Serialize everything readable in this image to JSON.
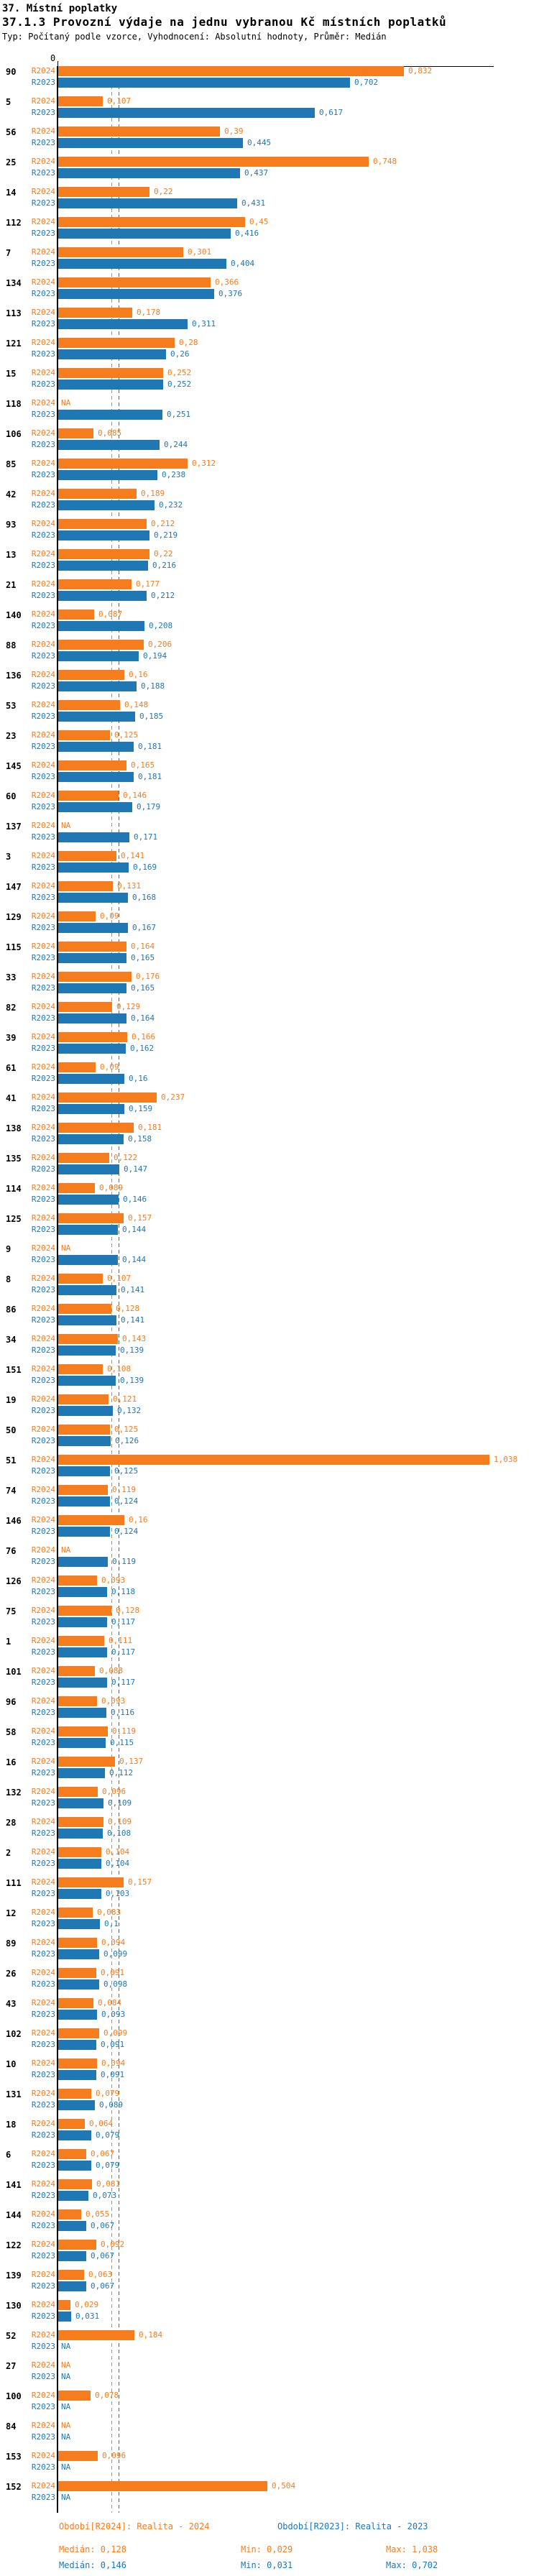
{
  "header": {
    "title": "37. Místní poplatky",
    "subtitle": "37.1.3 Provozní výdaje na jednu vybranou Kč místních poplatků",
    "meta": "Typ: Počítaný podle vzorce, Vyhodnocení: Absolutní hodnoty, Průměr: Medián"
  },
  "chart_data": {
    "type": "bar",
    "orientation": "horizontal",
    "title": "37.1.3 Provozní výdaje na jednu vybranou Kč místních poplatků",
    "series_labels": [
      "R2024",
      "R2023"
    ],
    "colors": {
      "r2024": "#F57D1D",
      "r2023": "#1F77B4"
    },
    "zero_label": "0",
    "na_label": "NA",
    "axis_min": 0,
    "axis_max": 1.05,
    "median_lines": {
      "r2024": 0.128,
      "r2023": 0.146
    },
    "legend": "bottom",
    "grid": "off",
    "groups": [
      {
        "id": "90",
        "r2024": "0,832",
        "r2023": "0,702"
      },
      {
        "id": "5",
        "r2024": "0,107",
        "r2023": "0,617"
      },
      {
        "id": "56",
        "r2024": "0,39",
        "r2023": "0,445"
      },
      {
        "id": "25",
        "r2024": "0,748",
        "r2023": "0,437"
      },
      {
        "id": "14",
        "r2024": "0,22",
        "r2023": "0,431"
      },
      {
        "id": "112",
        "r2024": "0,45",
        "r2023": "0,416"
      },
      {
        "id": "7",
        "r2024": "0,301",
        "r2023": "0,404"
      },
      {
        "id": "134",
        "r2024": "0,366",
        "r2023": "0,376"
      },
      {
        "id": "113",
        "r2024": "0,178",
        "r2023": "0,311"
      },
      {
        "id": "121",
        "r2024": "0,28",
        "r2023": "0,26"
      },
      {
        "id": "15",
        "r2024": "0,252",
        "r2023": "0,252"
      },
      {
        "id": "118",
        "r2024": "NA",
        "r2023": "0,251"
      },
      {
        "id": "106",
        "r2024": "0,085",
        "r2023": "0,244"
      },
      {
        "id": "85",
        "r2024": "0,312",
        "r2023": "0,238"
      },
      {
        "id": "42",
        "r2024": "0,189",
        "r2023": "0,232"
      },
      {
        "id": "93",
        "r2024": "0,212",
        "r2023": "0,219"
      },
      {
        "id": "13",
        "r2024": "0,22",
        "r2023": "0,216"
      },
      {
        "id": "21",
        "r2024": "0,177",
        "r2023": "0,212"
      },
      {
        "id": "140",
        "r2024": "0,087",
        "r2023": "0,208"
      },
      {
        "id": "88",
        "r2024": "0,206",
        "r2023": "0,194"
      },
      {
        "id": "136",
        "r2024": "0,16",
        "r2023": "0,188"
      },
      {
        "id": "53",
        "r2024": "0,148",
        "r2023": "0,185"
      },
      {
        "id": "23",
        "r2024": "0,125",
        "r2023": "0,181"
      },
      {
        "id": "145",
        "r2024": "0,165",
        "r2023": "0,181"
      },
      {
        "id": "60",
        "r2024": "0,146",
        "r2023": "0,179"
      },
      {
        "id": "137",
        "r2024": "NA",
        "r2023": "0,171"
      },
      {
        "id": "3",
        "r2024": "0,141",
        "r2023": "0,169"
      },
      {
        "id": "147",
        "r2024": "0,131",
        "r2023": "0,168"
      },
      {
        "id": "129",
        "r2024": "0,09",
        "r2023": "0,167"
      },
      {
        "id": "115",
        "r2024": "0,164",
        "r2023": "0,165"
      },
      {
        "id": "33",
        "r2024": "0,176",
        "r2023": "0,165"
      },
      {
        "id": "82",
        "r2024": "0,129",
        "r2023": "0,164"
      },
      {
        "id": "39",
        "r2024": "0,166",
        "r2023": "0,162"
      },
      {
        "id": "61",
        "r2024": "0,09",
        "r2023": "0,16"
      },
      {
        "id": "41",
        "r2024": "0,237",
        "r2023": "0,159"
      },
      {
        "id": "138",
        "r2024": "0,181",
        "r2023": "0,158"
      },
      {
        "id": "135",
        "r2024": "0,122",
        "r2023": "0,147"
      },
      {
        "id": "114",
        "r2024": "0,089",
        "r2023": "0,146"
      },
      {
        "id": "125",
        "r2024": "0,157",
        "r2023": "0,144"
      },
      {
        "id": "9",
        "r2024": "NA",
        "r2023": "0,144"
      },
      {
        "id": "8",
        "r2024": "0,107",
        "r2023": "0,141"
      },
      {
        "id": "86",
        "r2024": "0,128",
        "r2023": "0,141"
      },
      {
        "id": "34",
        "r2024": "0,143",
        "r2023": "0,139"
      },
      {
        "id": "151",
        "r2024": "0,108",
        "r2023": "0,139"
      },
      {
        "id": "19",
        "r2024": "0,121",
        "r2023": "0,132"
      },
      {
        "id": "50",
        "r2024": "0,125",
        "r2023": "0,126"
      },
      {
        "id": "51",
        "r2024": "1,038",
        "r2023": "0,125"
      },
      {
        "id": "74",
        "r2024": "0,119",
        "r2023": "0,124"
      },
      {
        "id": "146",
        "r2024": "0,16",
        "r2023": "0,124"
      },
      {
        "id": "76",
        "r2024": "NA",
        "r2023": "0,119"
      },
      {
        "id": "126",
        "r2024": "0,093",
        "r2023": "0,118"
      },
      {
        "id": "75",
        "r2024": "0,128",
        "r2023": "0,117"
      },
      {
        "id": "1",
        "r2024": "0,111",
        "r2023": "0,117"
      },
      {
        "id": "101",
        "r2024": "0,088",
        "r2023": "0,117"
      },
      {
        "id": "96",
        "r2024": "0,093",
        "r2023": "0,116"
      },
      {
        "id": "58",
        "r2024": "0,119",
        "r2023": "0,115"
      },
      {
        "id": "16",
        "r2024": "0,137",
        "r2023": "0,112"
      },
      {
        "id": "132",
        "r2024": "0,096",
        "r2023": "0,109"
      },
      {
        "id": "28",
        "r2024": "0,109",
        "r2023": "0,108"
      },
      {
        "id": "2",
        "r2024": "0,104",
        "r2023": "0,104"
      },
      {
        "id": "111",
        "r2024": "0,157",
        "r2023": "0,103"
      },
      {
        "id": "12",
        "r2024": "0,083",
        "r2023": "0,1"
      },
      {
        "id": "89",
        "r2024": "0,094",
        "r2023": "0,099"
      },
      {
        "id": "26",
        "r2024": "0,091",
        "r2023": "0,098"
      },
      {
        "id": "43",
        "r2024": "0,084",
        "r2023": "0,093"
      },
      {
        "id": "102",
        "r2024": "0,099",
        "r2023": "0,091"
      },
      {
        "id": "10",
        "r2024": "0,094",
        "r2023": "0,091"
      },
      {
        "id": "131",
        "r2024": "0,079",
        "r2023": "0,089"
      },
      {
        "id": "18",
        "r2024": "0,064",
        "r2023": "0,079"
      },
      {
        "id": "6",
        "r2024": "0,067",
        "r2023": "0,079"
      },
      {
        "id": "141",
        "r2024": "0,081",
        "r2023": "0,073"
      },
      {
        "id": "144",
        "r2024": "0,055",
        "r2023": "0,067"
      },
      {
        "id": "122",
        "r2024": "0,092",
        "r2023": "0,067"
      },
      {
        "id": "139",
        "r2024": "0,063",
        "r2023": "0,067"
      },
      {
        "id": "130",
        "r2024": "0,029",
        "r2023": "0,031"
      },
      {
        "id": "52",
        "r2024": "0,184",
        "r2023": "NA"
      },
      {
        "id": "27",
        "r2024": "NA",
        "r2023": "NA"
      },
      {
        "id": "100",
        "r2024": "0,078",
        "r2023": "NA"
      },
      {
        "id": "84",
        "r2024": "NA",
        "r2023": "NA"
      },
      {
        "id": "153",
        "r2024": "0,096",
        "r2023": "NA"
      },
      {
        "id": "152",
        "r2024": "0,504",
        "r2023": "NA"
      }
    ]
  },
  "legend": {
    "r2024": "Období[R2024]: Realita - 2024",
    "r2023": "Období[R2023]: Realita - 2023"
  },
  "stats": {
    "r2024": {
      "median": "Medián: 0,128",
      "min": "Min: 0,029",
      "max": "Max: 1,038"
    },
    "r2023": {
      "median": "Medián: 0,146",
      "min": "Min: 0,031",
      "max": "Max: 0,702"
    }
  }
}
